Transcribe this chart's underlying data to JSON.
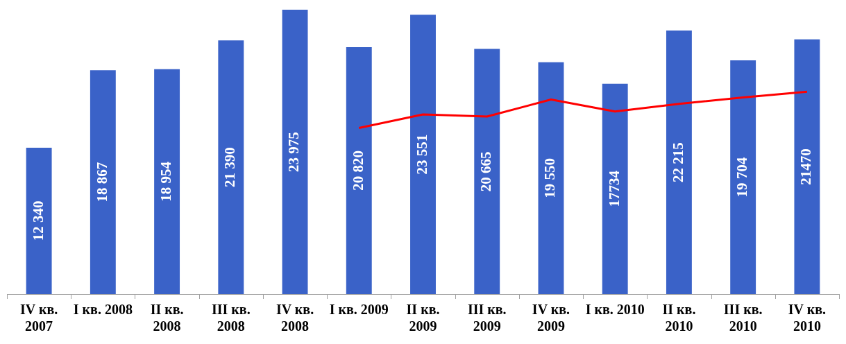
{
  "chart_data": {
    "type": "bar",
    "categories": [
      "IV кв.\n2007",
      "I кв. 2008",
      "II кв.\n2008",
      "III кв.\n2008",
      "IV кв.\n2008",
      "I кв. 2009",
      "II кв.\n2009",
      "III кв.\n2009",
      "IV кв.\n2009",
      "I кв. 2010",
      "II кв.\n2010",
      "III кв.\n2010",
      "IV кв.\n2010"
    ],
    "series": [
      {
        "color": "#3a62c8",
        "values": [
          12340,
          18867,
          18954,
          21390,
          23975,
          20820,
          23551,
          20665,
          19550,
          17734,
          22215,
          19704,
          21470
        ],
        "value_labels": [
          "12 340",
          "18 867",
          "18 954",
          "21 390",
          "23 975",
          "20 820",
          "23 551",
          "20 665",
          "19 550",
          "17734",
          "22 215",
          "19 704",
          "21470"
        ]
      },
      {
        "type": "line",
        "color": "#ff0000",
        "marker": "none",
        "values": [
          null,
          null,
          null,
          null,
          null,
          14000,
          15150,
          14970,
          16400,
          15390,
          16040,
          16580,
          17060
        ]
      }
    ],
    "ylim": [
      0,
      23975
    ],
    "grid": false,
    "legend": false,
    "tick_labels": "x"
  }
}
